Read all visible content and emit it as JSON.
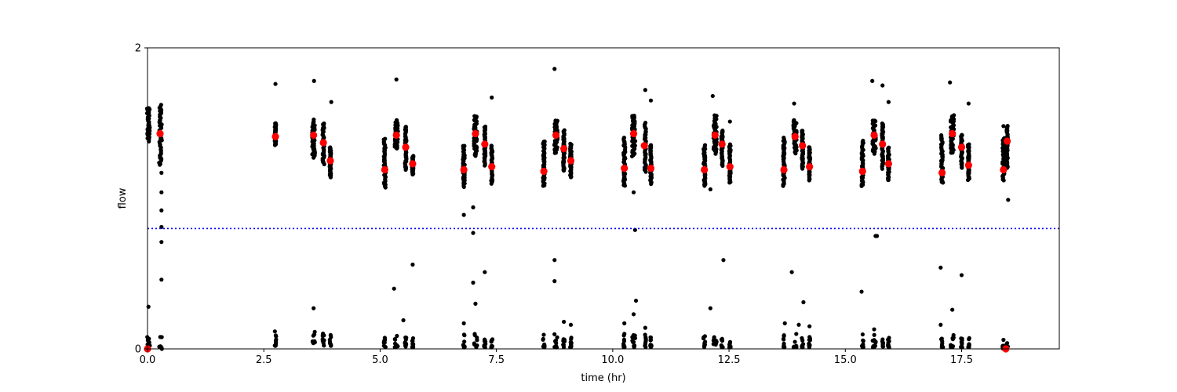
{
  "chart_data": {
    "type": "scatter",
    "title": "",
    "xlabel": "time (hr)",
    "ylabel": "flow",
    "xlim": [
      0,
      19.6
    ],
    "ylim": [
      0,
      2
    ],
    "x_ticks": [
      0,
      2.5,
      5,
      7.5,
      10,
      12.5,
      15,
      17.5
    ],
    "x_tick_labels": [
      "0.0",
      "2.5",
      "5.0",
      "7.5",
      "10.0",
      "12.5",
      "15.0",
      "17.5"
    ],
    "y_ticks": [
      0,
      2
    ],
    "y_tick_labels": [
      "0",
      "2"
    ],
    "grid": false,
    "threshold": {
      "value": 0.8,
      "style": "dotted",
      "color": "#0000ff"
    },
    "colors": {
      "observations": "#000000",
      "means": "#ff0000"
    },
    "observation_clusters": [
      {
        "x": 0.02,
        "spread": 0.06,
        "high": [
          1.38,
          1.6
        ],
        "low": [
          0,
          0.09
        ]
      },
      {
        "x": 0.28,
        "spread": 0.06,
        "high": [
          1.22,
          1.62
        ],
        "low": [
          0,
          0.09
        ]
      },
      {
        "x": 2.75,
        "spread": 0.03,
        "high": [
          1.35,
          1.5
        ],
        "low": [
          0.02,
          0.12
        ]
      },
      {
        "x": 3.57,
        "spread": 0.06,
        "high": [
          1.28,
          1.52
        ],
        "low": [
          0.02,
          0.12
        ]
      },
      {
        "x": 3.78,
        "spread": 0.04,
        "high": [
          1.23,
          1.5
        ],
        "low": [
          0.02,
          0.12
        ]
      },
      {
        "x": 3.93,
        "spread": 0.03,
        "high": [
          1.14,
          1.34
        ],
        "low": [
          0.02,
          0.12
        ]
      },
      {
        "x": 5.1,
        "spread": 0.04,
        "high": [
          1.07,
          1.4
        ],
        "low": [
          0.01,
          0.1
        ]
      },
      {
        "x": 5.35,
        "spread": 0.07,
        "high": [
          1.33,
          1.52
        ],
        "low": [
          0.01,
          0.1
        ]
      },
      {
        "x": 5.55,
        "spread": 0.03,
        "high": [
          1.2,
          1.48
        ],
        "low": [
          0.01,
          0.1
        ]
      },
      {
        "x": 5.7,
        "spread": 0.03,
        "high": [
          1.16,
          1.28
        ],
        "low": [
          0.01,
          0.09
        ]
      },
      {
        "x": 6.8,
        "spread": 0.04,
        "high": [
          1.08,
          1.35
        ],
        "low": [
          0.01,
          0.1
        ]
      },
      {
        "x": 7.05,
        "spread": 0.07,
        "high": [
          1.28,
          1.55
        ],
        "low": [
          0.01,
          0.1
        ]
      },
      {
        "x": 7.25,
        "spread": 0.03,
        "high": [
          1.22,
          1.48
        ],
        "low": [
          0.01,
          0.08
        ]
      },
      {
        "x": 7.4,
        "spread": 0.03,
        "high": [
          1.1,
          1.35
        ],
        "low": [
          0.01,
          0.08
        ]
      },
      {
        "x": 8.52,
        "spread": 0.04,
        "high": [
          1.08,
          1.38
        ],
        "low": [
          0.01,
          0.1
        ]
      },
      {
        "x": 8.78,
        "spread": 0.07,
        "high": [
          1.3,
          1.52
        ],
        "low": [
          0.01,
          0.1
        ]
      },
      {
        "x": 8.95,
        "spread": 0.03,
        "high": [
          1.18,
          1.45
        ],
        "low": [
          0.01,
          0.08
        ]
      },
      {
        "x": 9.1,
        "spread": 0.03,
        "high": [
          1.14,
          1.36
        ],
        "low": [
          0.01,
          0.08
        ]
      },
      {
        "x": 10.25,
        "spread": 0.04,
        "high": [
          1.08,
          1.4
        ],
        "low": [
          0.01,
          0.1
        ]
      },
      {
        "x": 10.45,
        "spread": 0.07,
        "high": [
          1.28,
          1.55
        ],
        "low": [
          0.01,
          0.1
        ]
      },
      {
        "x": 10.7,
        "spread": 0.03,
        "high": [
          1.18,
          1.5
        ],
        "low": [
          0.01,
          0.1
        ]
      },
      {
        "x": 10.82,
        "spread": 0.03,
        "high": [
          1.1,
          1.35
        ],
        "low": [
          0.01,
          0.08
        ]
      },
      {
        "x": 11.97,
        "spread": 0.04,
        "high": [
          1.08,
          1.35
        ],
        "low": [
          0.01,
          0.1
        ]
      },
      {
        "x": 12.2,
        "spread": 0.07,
        "high": [
          1.3,
          1.55
        ],
        "low": [
          0.01,
          0.1
        ]
      },
      {
        "x": 12.35,
        "spread": 0.03,
        "high": [
          1.22,
          1.45
        ],
        "low": [
          0.01,
          0.08
        ]
      },
      {
        "x": 12.52,
        "spread": 0.03,
        "high": [
          1.1,
          1.36
        ],
        "low": [
          0.01,
          0.08
        ]
      },
      {
        "x": 13.68,
        "spread": 0.04,
        "high": [
          1.08,
          1.4
        ],
        "low": [
          0.01,
          0.1
        ]
      },
      {
        "x": 13.92,
        "spread": 0.07,
        "high": [
          1.3,
          1.52
        ],
        "low": [
          0.01,
          0.1
        ]
      },
      {
        "x": 14.08,
        "spread": 0.03,
        "high": [
          1.2,
          1.45
        ],
        "low": [
          0.01,
          0.08
        ]
      },
      {
        "x": 14.23,
        "spread": 0.03,
        "high": [
          1.12,
          1.34
        ],
        "low": [
          0.01,
          0.08
        ]
      },
      {
        "x": 15.37,
        "spread": 0.04,
        "high": [
          1.08,
          1.38
        ],
        "low": [
          0.01,
          0.1
        ]
      },
      {
        "x": 15.62,
        "spread": 0.07,
        "high": [
          1.3,
          1.52
        ],
        "low": [
          0.01,
          0.1
        ]
      },
      {
        "x": 15.8,
        "spread": 0.03,
        "high": [
          1.2,
          1.5
        ],
        "low": [
          0.01,
          0.08
        ]
      },
      {
        "x": 15.93,
        "spread": 0.03,
        "high": [
          1.12,
          1.34
        ],
        "low": [
          0.01,
          0.08
        ]
      },
      {
        "x": 17.08,
        "spread": 0.04,
        "high": [
          1.1,
          1.42
        ],
        "low": [
          0.01,
          0.1
        ]
      },
      {
        "x": 17.3,
        "spread": 0.07,
        "high": [
          1.3,
          1.55
        ],
        "low": [
          0.01,
          0.1
        ]
      },
      {
        "x": 17.5,
        "spread": 0.03,
        "high": [
          1.2,
          1.42
        ],
        "low": [
          0.01,
          0.08
        ]
      },
      {
        "x": 17.65,
        "spread": 0.03,
        "high": [
          1.12,
          1.36
        ],
        "low": [
          0.01,
          0.08
        ]
      },
      {
        "x": 18.4,
        "spread": 0.04,
        "high": [
          1.12,
          1.4
        ],
        "low": [
          0.0,
          0.05
        ]
      },
      {
        "x": 18.48,
        "spread": 0.03,
        "high": [
          1.2,
          1.48
        ],
        "low": [
          0.0,
          0.05
        ]
      }
    ],
    "outliers": [
      [
        0.02,
        0.28
      ],
      [
        0.3,
        1.17
      ],
      [
        0.3,
        1.04
      ],
      [
        0.3,
        0.92
      ],
      [
        0.3,
        0.81
      ],
      [
        0.3,
        0.71
      ],
      [
        0.3,
        0.46
      ],
      [
        2.75,
        1.76
      ],
      [
        3.57,
        1.27
      ],
      [
        3.57,
        0.27
      ],
      [
        3.58,
        1.78
      ],
      [
        3.95,
        1.64
      ],
      [
        5.1,
        1.25
      ],
      [
        5.3,
        0.4
      ],
      [
        5.35,
        1.79
      ],
      [
        5.55,
        1.19
      ],
      [
        5.5,
        0.19
      ],
      [
        5.7,
        0.56
      ],
      [
        6.8,
        0.89
      ],
      [
        6.8,
        0.17
      ],
      [
        7.0,
        0.94
      ],
      [
        7.0,
        0.77
      ],
      [
        7.0,
        0.44
      ],
      [
        7.05,
        0.3
      ],
      [
        7.25,
        0.51
      ],
      [
        7.4,
        1.67
      ],
      [
        8.75,
        1.86
      ],
      [
        8.75,
        0.59
      ],
      [
        8.75,
        0.45
      ],
      [
        8.95,
        0.18
      ],
      [
        9.1,
        0.16
      ],
      [
        10.25,
        0.17
      ],
      [
        10.45,
        1.04
      ],
      [
        10.48,
        0.79
      ],
      [
        10.5,
        0.32
      ],
      [
        10.45,
        0.23
      ],
      [
        10.7,
        1.72
      ],
      [
        10.82,
        1.65
      ],
      [
        10.7,
        0.14
      ],
      [
        12.1,
        1.06
      ],
      [
        12.15,
        1.68
      ],
      [
        12.1,
        0.27
      ],
      [
        12.38,
        0.59
      ],
      [
        12.52,
        1.51
      ],
      [
        13.7,
        0.17
      ],
      [
        13.9,
        1.63
      ],
      [
        13.85,
        0.51
      ],
      [
        14.0,
        0.16
      ],
      [
        14.1,
        0.31
      ],
      [
        14.23,
        0.15
      ],
      [
        15.35,
        0.38
      ],
      [
        15.58,
        1.78
      ],
      [
        15.68,
        0.75
      ],
      [
        15.65,
        0.75
      ],
      [
        15.62,
        0.13
      ],
      [
        15.8,
        1.75
      ],
      [
        15.93,
        1.64
      ],
      [
        17.05,
        0.54
      ],
      [
        17.05,
        0.16
      ],
      [
        17.25,
        1.77
      ],
      [
        17.3,
        0.26
      ],
      [
        17.5,
        0.49
      ],
      [
        17.65,
        1.63
      ],
      [
        18.4,
        1.48
      ],
      [
        18.5,
        0.99
      ],
      [
        18.4,
        0.06
      ]
    ],
    "means": [
      [
        0.0,
        0.0
      ],
      [
        0.27,
        1.43
      ],
      [
        2.75,
        1.41
      ],
      [
        3.57,
        1.42
      ],
      [
        3.78,
        1.37
      ],
      [
        3.93,
        1.25
      ],
      [
        5.1,
        1.19
      ],
      [
        5.35,
        1.42
      ],
      [
        5.55,
        1.34
      ],
      [
        5.7,
        1.23
      ],
      [
        6.8,
        1.19
      ],
      [
        7.05,
        1.43
      ],
      [
        7.25,
        1.36
      ],
      [
        7.4,
        1.21
      ],
      [
        8.52,
        1.18
      ],
      [
        8.78,
        1.42
      ],
      [
        8.95,
        1.33
      ],
      [
        9.1,
        1.25
      ],
      [
        10.25,
        1.2
      ],
      [
        10.45,
        1.43
      ],
      [
        10.68,
        1.35
      ],
      [
        10.82,
        1.2
      ],
      [
        11.97,
        1.19
      ],
      [
        12.2,
        1.42
      ],
      [
        12.35,
        1.36
      ],
      [
        12.52,
        1.21
      ],
      [
        13.68,
        1.19
      ],
      [
        13.92,
        1.41
      ],
      [
        14.08,
        1.35
      ],
      [
        14.23,
        1.21
      ],
      [
        15.37,
        1.18
      ],
      [
        15.62,
        1.42
      ],
      [
        15.8,
        1.36
      ],
      [
        15.93,
        1.23
      ],
      [
        17.08,
        1.17
      ],
      [
        17.3,
        1.43
      ],
      [
        17.5,
        1.34
      ],
      [
        17.65,
        1.22
      ],
      [
        18.4,
        1.19
      ],
      [
        18.48,
        1.38
      ],
      [
        18.45,
        0.0
      ]
    ]
  }
}
